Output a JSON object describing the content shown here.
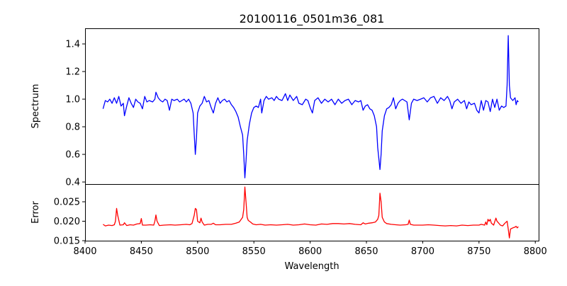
{
  "chart_data": [
    {
      "type": "line",
      "panel": "top",
      "title": "20100116_0501m36_081",
      "ylabel": "Spectrum",
      "xlabel": "",
      "xlim": [
        8400,
        8803
      ],
      "ylim": [
        0.385,
        1.513
      ],
      "yticks": [
        0.4,
        0.6,
        0.8,
        1.0,
        1.2,
        1.4
      ],
      "ytick_labels": [
        "0.4",
        "0.6",
        "0.8",
        "1.0",
        "1.2",
        "1.4"
      ],
      "color": "#0000ff",
      "grid": false,
      "x": [
        8416,
        8418,
        8420,
        8422,
        8424,
        8426,
        8428,
        8430,
        8432,
        8434,
        8435,
        8437,
        8439,
        8441,
        8443,
        8445,
        8447,
        8449,
        8451,
        8453,
        8455,
        8457,
        8460,
        8462,
        8463,
        8465,
        8467,
        8469,
        8471,
        8473,
        8475,
        8477,
        8479,
        8482,
        8484,
        8486,
        8488,
        8490,
        8492,
        8494,
        8496,
        8497,
        8498,
        8499,
        8500,
        8502,
        8504,
        8506,
        8508,
        8510,
        8512,
        8514,
        8516,
        8518,
        8520,
        8522,
        8524,
        8526,
        8528,
        8530,
        8532,
        8534,
        8536,
        8538,
        8540,
        8541,
        8542,
        8543,
        8544,
        8546,
        8548,
        8550,
        8552,
        8554,
        8556,
        8557,
        8559,
        8561,
        8563,
        8566,
        8568,
        8570,
        8572,
        8575,
        8578,
        8580,
        8582,
        8585,
        8588,
        8590,
        8593,
        8596,
        8598,
        8600,
        8602,
        8604,
        8607,
        8610,
        8613,
        8616,
        8619,
        8622,
        8625,
        8628,
        8631,
        8634,
        8637,
        8640,
        8643,
        8645,
        8647,
        8649,
        8651,
        8653,
        8655,
        8657,
        8659,
        8660,
        8662,
        8663,
        8664,
        8666,
        8668,
        8670,
        8672,
        8674,
        8676,
        8678,
        8680,
        8682,
        8684,
        8686,
        8688,
        8690,
        8692,
        8695,
        8698,
        8701,
        8704,
        8707,
        8710,
        8713,
        8716,
        8719,
        8722,
        8724,
        8726,
        8728,
        8731,
        8734,
        8737,
        8739,
        8741,
        8743,
        8746,
        8748,
        8750,
        8752,
        8754,
        8756,
        8758,
        8760,
        8762,
        8764,
        8766,
        8768,
        8770,
        8772,
        8774,
        8775,
        8776,
        8777,
        8778,
        8780,
        8782,
        8783,
        8784,
        8785
      ],
      "y": [
        0.93,
        0.99,
        0.98,
        1.0,
        0.97,
        1.01,
        0.97,
        1.02,
        0.95,
        0.97,
        0.88,
        0.95,
        1.01,
        0.97,
        0.94,
        1.0,
        0.98,
        0.97,
        0.93,
        1.02,
        0.98,
        0.99,
        0.98,
        1.0,
        1.05,
        1.01,
        0.99,
        0.98,
        1.0,
        0.99,
        0.92,
        1.0,
        0.99,
        1.0,
        0.98,
        0.99,
        1.0,
        0.98,
        1.0,
        0.97,
        0.9,
        0.75,
        0.6,
        0.72,
        0.9,
        0.95,
        0.97,
        1.02,
        0.98,
        0.99,
        0.94,
        0.9,
        0.97,
        1.01,
        0.97,
        0.99,
        1.0,
        0.98,
        0.99,
        0.96,
        0.94,
        0.91,
        0.87,
        0.8,
        0.74,
        0.6,
        0.43,
        0.55,
        0.7,
        0.82,
        0.9,
        0.94,
        0.95,
        0.94,
        1.0,
        0.9,
        0.99,
        1.02,
        1.0,
        1.01,
        0.99,
        1.02,
        1.0,
        0.99,
        1.04,
        0.99,
        1.03,
        0.99,
        1.02,
        0.97,
        0.96,
        1.0,
        0.99,
        0.94,
        0.9,
        0.99,
        1.01,
        0.97,
        1.0,
        0.98,
        1.0,
        0.96,
        1.0,
        0.97,
        0.99,
        1.0,
        0.96,
        0.99,
        0.98,
        0.99,
        0.92,
        0.95,
        0.96,
        0.93,
        0.92,
        0.88,
        0.8,
        0.65,
        0.49,
        0.6,
        0.77,
        0.88,
        0.93,
        0.94,
        0.96,
        1.01,
        0.93,
        0.97,
        0.99,
        1.0,
        0.99,
        0.98,
        0.85,
        0.97,
        1.0,
        0.99,
        1.0,
        1.01,
        0.98,
        1.01,
        1.02,
        0.97,
        1.01,
        0.99,
        1.02,
        0.99,
        0.93,
        0.98,
        1.0,
        0.97,
        0.99,
        0.93,
        0.98,
        0.96,
        0.97,
        0.92,
        0.9,
        0.99,
        0.92,
        0.99,
        0.98,
        0.91,
        1.0,
        0.94,
        1.0,
        0.92,
        0.95,
        0.94,
        0.95,
        1.1,
        1.46,
        1.1,
        1.01,
        0.99,
        1.01,
        0.96,
        0.99,
        0.98
      ]
    },
    {
      "type": "line",
      "panel": "bottom",
      "ylabel": "Error",
      "xlabel": "Wavelength",
      "xlim": [
        8400,
        8803
      ],
      "ylim": [
        0.015,
        0.02955
      ],
      "yticks": [
        0.015,
        0.02,
        0.025
      ],
      "ytick_labels": [
        "0.015",
        "0.020",
        "0.025"
      ],
      "xticks": [
        8400,
        8450,
        8500,
        8550,
        8600,
        8650,
        8700,
        8750,
        8800
      ],
      "xtick_labels": [
        "8400",
        "8450",
        "8500",
        "8550",
        "8600",
        "8650",
        "8700",
        "8750",
        "8800"
      ],
      "color": "#ff0000",
      "grid": false,
      "x": [
        8416,
        8418,
        8421,
        8424,
        8426,
        8427,
        8428,
        8429,
        8431,
        8434,
        8435,
        8437,
        8440,
        8443,
        8446,
        8449,
        8450,
        8451,
        8454,
        8458,
        8461,
        8462,
        8463,
        8464,
        8466,
        8470,
        8476,
        8480,
        8485,
        8490,
        8493,
        8495,
        8497,
        8498,
        8499,
        8500,
        8502,
        8503,
        8504,
        8506,
        8509,
        8512,
        8514,
        8516,
        8520,
        8525,
        8530,
        8534,
        8537,
        8539,
        8540,
        8541,
        8542,
        8543,
        8544,
        8545,
        8547,
        8549,
        8552,
        8556,
        8560,
        8565,
        8570,
        8575,
        8580,
        8585,
        8590,
        8595,
        8600,
        8605,
        8610,
        8615,
        8620,
        8625,
        8630,
        8635,
        8640,
        8645,
        8647,
        8649,
        8652,
        8655,
        8658,
        8660,
        8661,
        8662,
        8663,
        8664,
        8666,
        8668,
        8672,
        8676,
        8680,
        8685,
        8687,
        8688,
        8689,
        8692,
        8696,
        8700,
        8705,
        8710,
        8715,
        8720,
        8725,
        8730,
        8735,
        8740,
        8745,
        8750,
        8752,
        8755,
        8756,
        8757,
        8758,
        8759,
        8760,
        8761,
        8763,
        8765,
        8766,
        8767,
        8769,
        8771,
        8773,
        8775,
        8776,
        8777,
        8778,
        8780,
        8782,
        8783,
        8784,
        8785
      ],
      "y": [
        0.0192,
        0.0188,
        0.019,
        0.0189,
        0.0191,
        0.02,
        0.0233,
        0.0215,
        0.019,
        0.0191,
        0.0196,
        0.0189,
        0.0191,
        0.019,
        0.0193,
        0.0194,
        0.0207,
        0.019,
        0.019,
        0.0191,
        0.019,
        0.02,
        0.0216,
        0.02,
        0.0189,
        0.019,
        0.0191,
        0.019,
        0.0191,
        0.0192,
        0.0191,
        0.0194,
        0.0215,
        0.0233,
        0.023,
        0.02,
        0.0196,
        0.0208,
        0.0198,
        0.019,
        0.0192,
        0.0192,
        0.0195,
        0.0191,
        0.0191,
        0.0192,
        0.0192,
        0.0195,
        0.0198,
        0.0206,
        0.021,
        0.023,
        0.0288,
        0.025,
        0.021,
        0.0202,
        0.0198,
        0.0193,
        0.0191,
        0.0192,
        0.019,
        0.0191,
        0.019,
        0.0191,
        0.0192,
        0.019,
        0.0191,
        0.0193,
        0.0191,
        0.019,
        0.0193,
        0.0192,
        0.0194,
        0.0194,
        0.0193,
        0.0194,
        0.0192,
        0.0191,
        0.0196,
        0.0193,
        0.0195,
        0.0196,
        0.0198,
        0.0205,
        0.0215,
        0.0272,
        0.025,
        0.021,
        0.0198,
        0.0194,
        0.0192,
        0.0191,
        0.019,
        0.0191,
        0.0192,
        0.0203,
        0.0192,
        0.019,
        0.019,
        0.019,
        0.0191,
        0.019,
        0.0189,
        0.0188,
        0.0189,
        0.0188,
        0.019,
        0.0189,
        0.019,
        0.019,
        0.0192,
        0.019,
        0.0198,
        0.0191,
        0.0205,
        0.02,
        0.0205,
        0.0195,
        0.019,
        0.0208,
        0.02,
        0.0197,
        0.019,
        0.0188,
        0.0195,
        0.02,
        0.018,
        0.0157,
        0.018,
        0.0183,
        0.0185,
        0.0187,
        0.0183,
        0.0186
      ]
    }
  ]
}
